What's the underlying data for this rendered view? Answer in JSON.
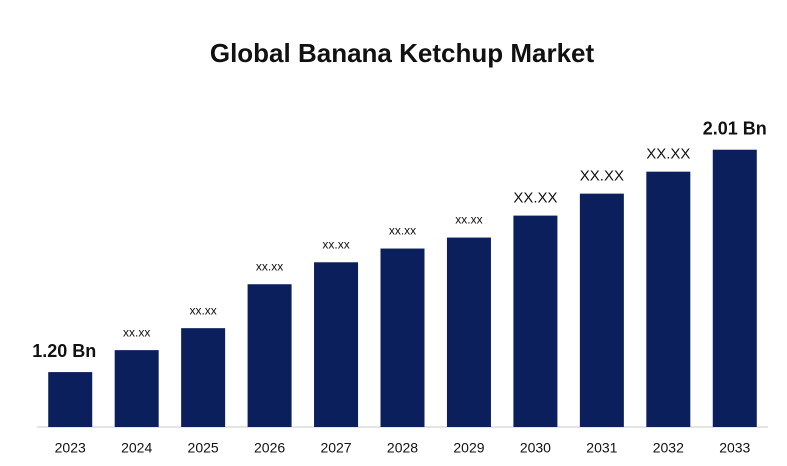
{
  "chart_data": {
    "type": "bar",
    "title": "Global Banana Ketchup Market",
    "categories": [
      "2023",
      "2024",
      "2025",
      "2026",
      "2027",
      "2028",
      "2029",
      "2030",
      "2031",
      "2032",
      "2033"
    ],
    "values": [
      1.2,
      1.28,
      1.36,
      1.52,
      1.6,
      1.65,
      1.69,
      1.77,
      1.85,
      1.93,
      2.01
    ],
    "value_labels": [
      "1.20 Bn",
      "xx.xx",
      "xx.xx",
      "xx.xx",
      "xx.xx",
      "xx.xx",
      "xx.xx",
      "XX.XX",
      "XX.XX",
      "XX.XX",
      "2.01 Bn"
    ],
    "color": "#0b1f5c",
    "ylim": [
      1.0,
      2.1
    ]
  }
}
